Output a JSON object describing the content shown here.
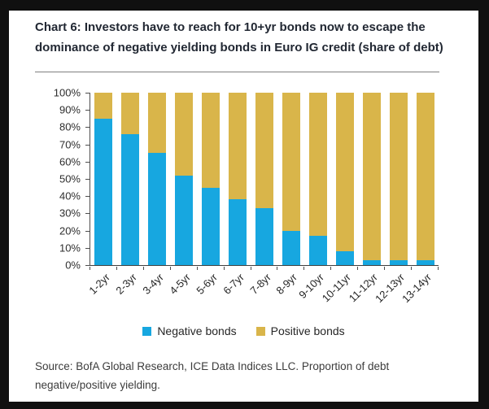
{
  "title": "Chart 6: Investors have to reach for 10+yr bonds now to escape the dominance of negative yielding bonds in Euro IG credit (share of debt)",
  "source": "Source: BofA Global Research, ICE Data Indices LLC. Proportion of debt negative/positive yielding.",
  "legend": [
    {
      "label": "Negative bonds",
      "color": "#17a7e0"
    },
    {
      "label": "Positive bonds",
      "color": "#d9b54a"
    }
  ],
  "colors": {
    "negative": "#17a7e0",
    "positive": "#d9b54a",
    "title_text": "#222833",
    "axis_line": "#4d4d4d",
    "tick_text": "#2e2e2e",
    "source_text": "#3c3c3c",
    "frame": "#101010",
    "panel": "#ffffff"
  },
  "chart_data": {
    "type": "bar",
    "stacked": true,
    "title": "Chart 6: Investors have to reach for 10+yr bonds now to escape the dominance of negative yielding bonds in Euro IG credit (share of debt)",
    "categories": [
      "1-2yr",
      "2-3yr",
      "3-4yr",
      "4-5yr",
      "5-6yr",
      "6-7yr",
      "7-8yr",
      "8-9yr",
      "9-10yr",
      "10-11yr",
      "11-12yr",
      "12-13yr",
      "13-14yr"
    ],
    "series": [
      {
        "name": "Negative bonds",
        "color": "#17a7e0",
        "values": [
          85,
          76,
          65,
          52,
          45,
          38,
          33,
          20,
          17,
          8,
          3,
          3,
          3
        ]
      },
      {
        "name": "Positive bonds",
        "color": "#d9b54a",
        "values": [
          15,
          24,
          35,
          48,
          55,
          62,
          67,
          80,
          83,
          92,
          97,
          97,
          97
        ]
      }
    ],
    "xlabel": "",
    "ylabel": "",
    "ylim": [
      0,
      100
    ],
    "y_ticks": [
      "0%",
      "10%",
      "20%",
      "30%",
      "40%",
      "50%",
      "60%",
      "70%",
      "80%",
      "90%",
      "100%"
    ],
    "grid": false,
    "legend_position": "bottom"
  }
}
